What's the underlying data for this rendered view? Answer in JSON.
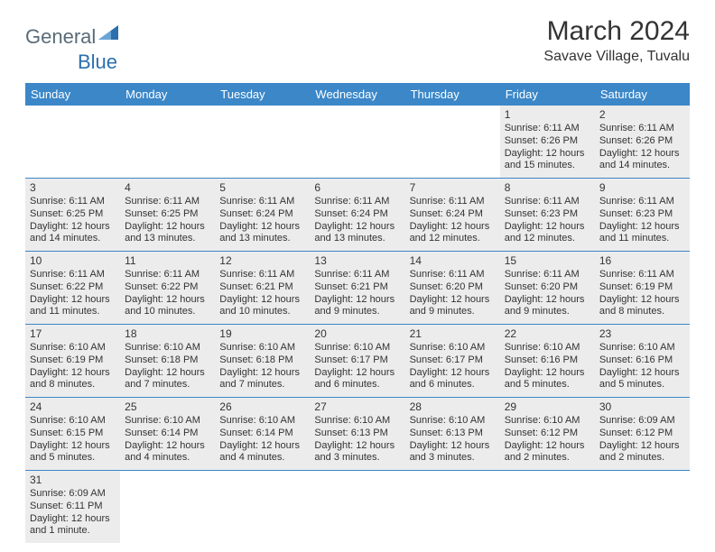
{
  "logo": {
    "text1": "General",
    "text2": "Blue"
  },
  "title": "March 2024",
  "location": "Savave Village, Tuvalu",
  "colors": {
    "headerBg": "#3b87c8",
    "headerText": "#ffffff",
    "borderColor": "#3b87c8",
    "shadedBg": "#ececec",
    "textColor": "#333333",
    "logoColor1": "#5a6b78",
    "logoColor2": "#2c6fae"
  },
  "dayHeaders": [
    "Sunday",
    "Monday",
    "Tuesday",
    "Wednesday",
    "Thursday",
    "Friday",
    "Saturday"
  ],
  "weeks": [
    [
      null,
      null,
      null,
      null,
      null,
      {
        "n": "1",
        "sr": "Sunrise: 6:11 AM",
        "ss": "Sunset: 6:26 PM",
        "dl": "Daylight: 12 hours and 15 minutes."
      },
      {
        "n": "2",
        "sr": "Sunrise: 6:11 AM",
        "ss": "Sunset: 6:26 PM",
        "dl": "Daylight: 12 hours and 14 minutes."
      }
    ],
    [
      {
        "n": "3",
        "sr": "Sunrise: 6:11 AM",
        "ss": "Sunset: 6:25 PM",
        "dl": "Daylight: 12 hours and 14 minutes."
      },
      {
        "n": "4",
        "sr": "Sunrise: 6:11 AM",
        "ss": "Sunset: 6:25 PM",
        "dl": "Daylight: 12 hours and 13 minutes."
      },
      {
        "n": "5",
        "sr": "Sunrise: 6:11 AM",
        "ss": "Sunset: 6:24 PM",
        "dl": "Daylight: 12 hours and 13 minutes."
      },
      {
        "n": "6",
        "sr": "Sunrise: 6:11 AM",
        "ss": "Sunset: 6:24 PM",
        "dl": "Daylight: 12 hours and 13 minutes."
      },
      {
        "n": "7",
        "sr": "Sunrise: 6:11 AM",
        "ss": "Sunset: 6:24 PM",
        "dl": "Daylight: 12 hours and 12 minutes."
      },
      {
        "n": "8",
        "sr": "Sunrise: 6:11 AM",
        "ss": "Sunset: 6:23 PM",
        "dl": "Daylight: 12 hours and 12 minutes."
      },
      {
        "n": "9",
        "sr": "Sunrise: 6:11 AM",
        "ss": "Sunset: 6:23 PM",
        "dl": "Daylight: 12 hours and 11 minutes."
      }
    ],
    [
      {
        "n": "10",
        "sr": "Sunrise: 6:11 AM",
        "ss": "Sunset: 6:22 PM",
        "dl": "Daylight: 12 hours and 11 minutes."
      },
      {
        "n": "11",
        "sr": "Sunrise: 6:11 AM",
        "ss": "Sunset: 6:22 PM",
        "dl": "Daylight: 12 hours and 10 minutes."
      },
      {
        "n": "12",
        "sr": "Sunrise: 6:11 AM",
        "ss": "Sunset: 6:21 PM",
        "dl": "Daylight: 12 hours and 10 minutes."
      },
      {
        "n": "13",
        "sr": "Sunrise: 6:11 AM",
        "ss": "Sunset: 6:21 PM",
        "dl": "Daylight: 12 hours and 9 minutes."
      },
      {
        "n": "14",
        "sr": "Sunrise: 6:11 AM",
        "ss": "Sunset: 6:20 PM",
        "dl": "Daylight: 12 hours and 9 minutes."
      },
      {
        "n": "15",
        "sr": "Sunrise: 6:11 AM",
        "ss": "Sunset: 6:20 PM",
        "dl": "Daylight: 12 hours and 9 minutes."
      },
      {
        "n": "16",
        "sr": "Sunrise: 6:11 AM",
        "ss": "Sunset: 6:19 PM",
        "dl": "Daylight: 12 hours and 8 minutes."
      }
    ],
    [
      {
        "n": "17",
        "sr": "Sunrise: 6:10 AM",
        "ss": "Sunset: 6:19 PM",
        "dl": "Daylight: 12 hours and 8 minutes."
      },
      {
        "n": "18",
        "sr": "Sunrise: 6:10 AM",
        "ss": "Sunset: 6:18 PM",
        "dl": "Daylight: 12 hours and 7 minutes."
      },
      {
        "n": "19",
        "sr": "Sunrise: 6:10 AM",
        "ss": "Sunset: 6:18 PM",
        "dl": "Daylight: 12 hours and 7 minutes."
      },
      {
        "n": "20",
        "sr": "Sunrise: 6:10 AM",
        "ss": "Sunset: 6:17 PM",
        "dl": "Daylight: 12 hours and 6 minutes."
      },
      {
        "n": "21",
        "sr": "Sunrise: 6:10 AM",
        "ss": "Sunset: 6:17 PM",
        "dl": "Daylight: 12 hours and 6 minutes."
      },
      {
        "n": "22",
        "sr": "Sunrise: 6:10 AM",
        "ss": "Sunset: 6:16 PM",
        "dl": "Daylight: 12 hours and 5 minutes."
      },
      {
        "n": "23",
        "sr": "Sunrise: 6:10 AM",
        "ss": "Sunset: 6:16 PM",
        "dl": "Daylight: 12 hours and 5 minutes."
      }
    ],
    [
      {
        "n": "24",
        "sr": "Sunrise: 6:10 AM",
        "ss": "Sunset: 6:15 PM",
        "dl": "Daylight: 12 hours and 5 minutes."
      },
      {
        "n": "25",
        "sr": "Sunrise: 6:10 AM",
        "ss": "Sunset: 6:14 PM",
        "dl": "Daylight: 12 hours and 4 minutes."
      },
      {
        "n": "26",
        "sr": "Sunrise: 6:10 AM",
        "ss": "Sunset: 6:14 PM",
        "dl": "Daylight: 12 hours and 4 minutes."
      },
      {
        "n": "27",
        "sr": "Sunrise: 6:10 AM",
        "ss": "Sunset: 6:13 PM",
        "dl": "Daylight: 12 hours and 3 minutes."
      },
      {
        "n": "28",
        "sr": "Sunrise: 6:10 AM",
        "ss": "Sunset: 6:13 PM",
        "dl": "Daylight: 12 hours and 3 minutes."
      },
      {
        "n": "29",
        "sr": "Sunrise: 6:10 AM",
        "ss": "Sunset: 6:12 PM",
        "dl": "Daylight: 12 hours and 2 minutes."
      },
      {
        "n": "30",
        "sr": "Sunrise: 6:09 AM",
        "ss": "Sunset: 6:12 PM",
        "dl": "Daylight: 12 hours and 2 minutes."
      }
    ],
    [
      {
        "n": "31",
        "sr": "Sunrise: 6:09 AM",
        "ss": "Sunset: 6:11 PM",
        "dl": "Daylight: 12 hours and 1 minute."
      },
      null,
      null,
      null,
      null,
      null,
      null
    ]
  ]
}
